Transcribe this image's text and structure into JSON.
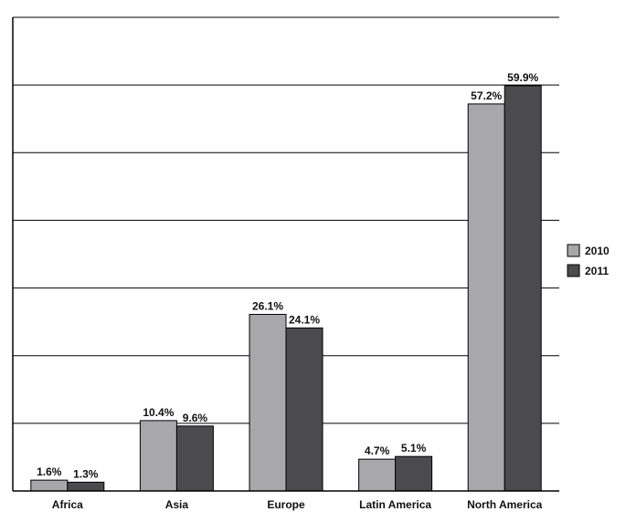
{
  "chart_data": {
    "type": "bar",
    "title": "",
    "xlabel": "",
    "ylabel": "",
    "categories": [
      "Africa",
      "Asia",
      "Europe",
      "Latin America",
      "North America"
    ],
    "series": [
      {
        "name": "2010",
        "values": [
          1.6,
          10.4,
          26.1,
          4.7,
          57.2
        ],
        "labels": [
          "1.6%",
          "10.4%",
          "26.1%",
          "4.7%",
          "57.2%"
        ],
        "color": "#a8a8aa"
      },
      {
        "name": "2011",
        "values": [
          1.3,
          9.6,
          24.1,
          5.1,
          59.9
        ],
        "labels": [
          "1.3%",
          "9.6%",
          "24.1%",
          "5.1%",
          "59.9%"
        ],
        "color": "#4b4b4d"
      }
    ],
    "ylim": [
      0,
      70
    ],
    "grid": true,
    "y_tick_labels_shown": false,
    "legend_position": "right"
  }
}
